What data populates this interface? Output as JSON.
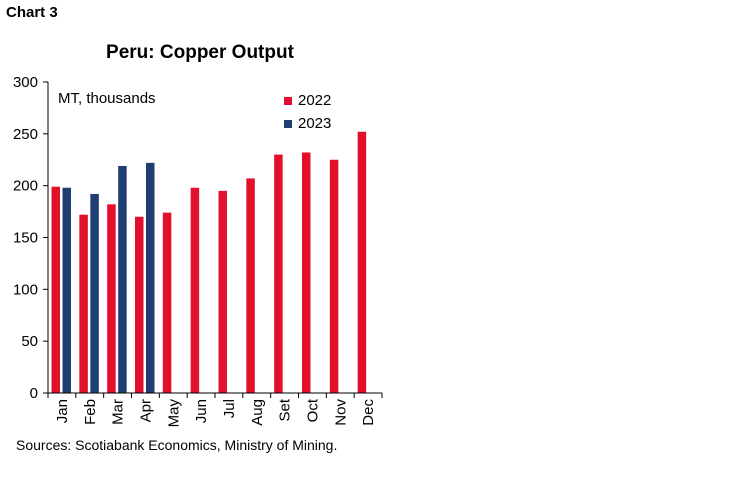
{
  "chart_label": "Chart 3",
  "chart_data": {
    "type": "bar",
    "title": "Peru: Copper Output",
    "unit_label": "MT, thousands",
    "categories": [
      "Jan",
      "Feb",
      "Mar",
      "Apr",
      "May",
      "Jun",
      "Jul",
      "Aug",
      "Set",
      "Oct",
      "Nov",
      "Dec"
    ],
    "series": [
      {
        "name": "2022",
        "color": "#e3102c",
        "values": [
          199,
          172,
          182,
          170,
          174,
          198,
          195,
          207,
          230,
          232,
          225,
          252
        ]
      },
      {
        "name": "2023",
        "color": "#1f3f73",
        "values": [
          198,
          192,
          219,
          222,
          null,
          null,
          null,
          null,
          null,
          null,
          null,
          null
        ]
      }
    ],
    "ylim": [
      0,
      300
    ],
    "yticks": [
      0,
      50,
      100,
      150,
      200,
      250,
      300
    ],
    "xlabel": "",
    "ylabel": "",
    "grid": false,
    "legend_position": "top-right"
  },
  "source": "Sources: Scotiabank Economics, Ministry of Mining."
}
